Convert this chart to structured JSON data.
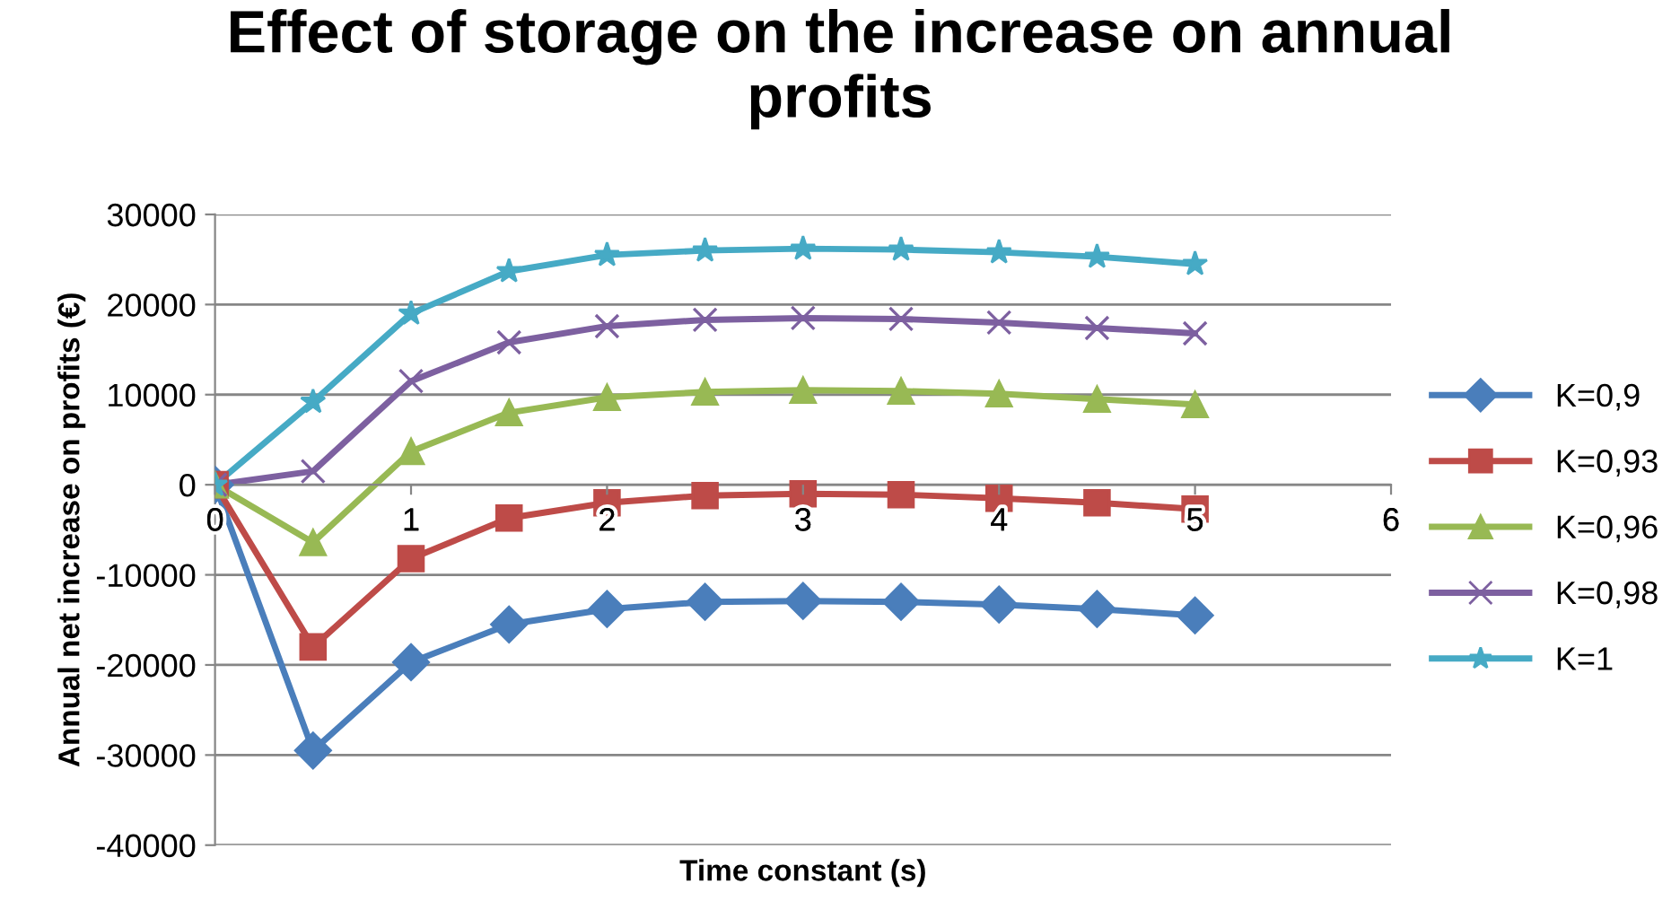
{
  "chart_data": {
    "type": "line",
    "title": "Effect of storage on the increase on annual profits",
    "xlabel": "Time constant (s)",
    "ylabel": "Annual net increase on profits (€)",
    "x": [
      0,
      0.5,
      1,
      1.5,
      2,
      2.5,
      3,
      3.5,
      4,
      4.5,
      5
    ],
    "series": [
      {
        "name": "K=0,9",
        "color": "#4a7ebb",
        "marker": "diamond",
        "values": [
          0,
          -29500,
          -19700,
          -15500,
          -13800,
          -13000,
          -12900,
          -13000,
          -13300,
          -13800,
          -14500
        ]
      },
      {
        "name": "K=0,93",
        "color": "#be4b48",
        "marker": "square",
        "values": [
          0,
          -18000,
          -8200,
          -3700,
          -2000,
          -1200,
          -1000,
          -1100,
          -1500,
          -2000,
          -2700
        ]
      },
      {
        "name": "K=0,96",
        "color": "#98b954",
        "marker": "triangle",
        "values": [
          0,
          -6400,
          3700,
          8000,
          9700,
          10300,
          10500,
          10400,
          10100,
          9500,
          8900
        ]
      },
      {
        "name": "K=0,98",
        "color": "#7d60a0",
        "marker": "cross",
        "values": [
          0,
          1500,
          11500,
          15800,
          17600,
          18300,
          18500,
          18400,
          18000,
          17400,
          16800
        ]
      },
      {
        "name": "K=1",
        "color": "#46aac5",
        "marker": "star",
        "values": [
          0,
          9200,
          19000,
          23700,
          25500,
          26000,
          26200,
          26100,
          25800,
          25300,
          24500
        ]
      }
    ],
    "xlim": [
      0,
      6
    ],
    "xticks": [
      0,
      1,
      2,
      3,
      4,
      5,
      6
    ],
    "ylim": [
      -40000,
      30000
    ],
    "yticks": [
      -40000,
      -30000,
      -20000,
      -10000,
      0,
      10000,
      20000,
      30000
    ],
    "grid": "y",
    "legend": "right",
    "line_style": "solid"
  }
}
